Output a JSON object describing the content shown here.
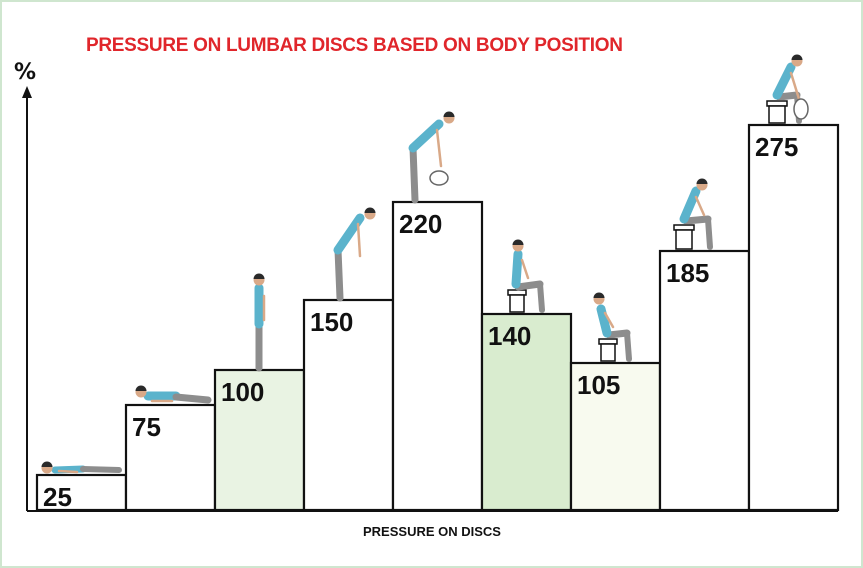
{
  "chart_data": {
    "type": "bar",
    "title": "PRESSURE ON LUMBAR DISCS BASED ON BODY POSITION",
    "xlabel": "PRESSURE ON DISCS",
    "ylabel": "%",
    "categories": [
      "lying on back",
      "lying on side",
      "standing",
      "standing, leaning forward",
      "standing, bending forward lifting weight",
      "sitting upright",
      "sitting reclined",
      "sitting, leaning forward",
      "sitting, bending forward lifting weight"
    ],
    "values": [
      25,
      75,
      100,
      150,
      220,
      140,
      105,
      185,
      275
    ],
    "value_labels": [
      "25",
      "75",
      "100",
      "150",
      "220",
      "140",
      "105",
      "185",
      "275"
    ],
    "ylim": [
      0,
      300
    ],
    "grid": false,
    "legend": "none"
  },
  "colors": {
    "title": "#e0262b",
    "bar_default": "#ffffff",
    "bar_light_green": "#e9f3e3",
    "bar_medium_green": "#d9eccf",
    "bar_cream": "#f8faef",
    "bar_outline": "#111111",
    "frame_border": "#cfe6cf",
    "figure_shirt": "#5bb3cc",
    "figure_pants": "#8d8d8d",
    "figure_skin": "#d9a988",
    "figure_hair": "#2a2a2a"
  },
  "bar_fills": [
    "bar_default",
    "bar_default",
    "bar_light_green",
    "bar_default",
    "bar_default",
    "bar_medium_green",
    "bar_cream",
    "bar_default",
    "bar_default"
  ],
  "icons": [
    "lying-on-back-figure-icon",
    "lying-on-side-figure-icon",
    "standing-figure-icon",
    "leaning-forward-figure-icon",
    "lifting-weight-figure-icon",
    "sitting-upright-figure-icon",
    "sitting-reclined-figure-icon",
    "sitting-leaning-figure-icon",
    "sitting-lifting-figure-icon"
  ]
}
